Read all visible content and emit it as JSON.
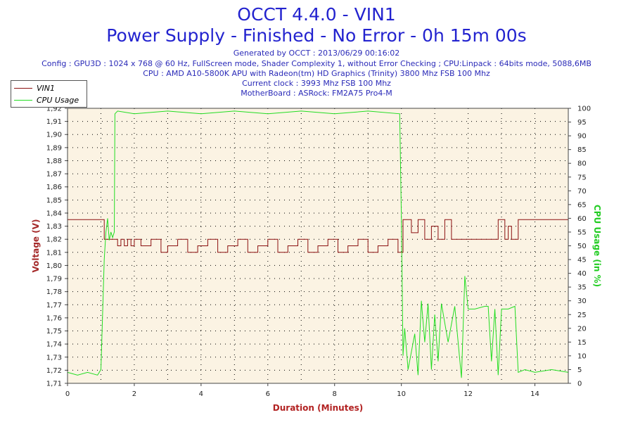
{
  "header": {
    "title": "OCCT 4.4.0 - VIN1",
    "subtitle": "Power Supply - Finished - No Error - 0h 15m 00s",
    "generated": "Generated by OCCT : 2013/06/29 00:16:02",
    "config": "Config : GPU3D : 1024 x 768 @ 60 Hz, FullScreen mode, Shader Complexity 1, without Error Checking ; CPU:Linpack : 64bits mode, 5088,6MB",
    "cpu": "CPU : AMD A10-5800K APU with Radeon(tm) HD Graphics (Trinity) 3800 Mhz FSB 100 Mhz",
    "clock": "Current clock : 3993 Mhz FSB 100 Mhz",
    "motherboard": "MotherBoard : ASRock: FM2A75 Pro4-M"
  },
  "colors": {
    "vin1": "#8b1010",
    "cpu": "#22dd22",
    "plot_bg": "#fbf3e3",
    "left_axis_label": "#a52a2a",
    "right_axis_label": "#22cc22",
    "bottom_axis_label": "#b22222"
  },
  "chart_data": {
    "type": "line",
    "title": "OCCT 4.4.0 - VIN1",
    "xlabel": "Duration (Minutes)",
    "ylabel": "Voltage (V)",
    "y2label": "CPU Usage (in %)",
    "xlim": [
      0,
      15
    ],
    "ylim": [
      1.71,
      1.92
    ],
    "y2lim": [
      0,
      100
    ],
    "x_ticks": [
      0,
      2,
      4,
      6,
      8,
      10,
      12,
      14
    ],
    "y_ticks": [
      "1,71",
      "1,72",
      "1,73",
      "1,74",
      "1,75",
      "1,76",
      "1,77",
      "1,78",
      "1,79",
      "1,80",
      "1,81",
      "1,82",
      "1,83",
      "1,84",
      "1,85",
      "1,86",
      "1,87",
      "1,88",
      "1,89",
      "1,90",
      "1,91",
      "1,92"
    ],
    "y2_ticks": [
      0,
      5,
      10,
      15,
      20,
      25,
      30,
      35,
      40,
      45,
      50,
      55,
      60,
      65,
      70,
      75,
      80,
      85,
      90,
      95,
      100
    ],
    "grid": true,
    "legend": "top-left",
    "series": [
      {
        "name": "VIN1",
        "axis": "left",
        "x": [
          0,
          1.1,
          1.1,
          1.4,
          1.5,
          1.6,
          1.7,
          1.8,
          1.9,
          2.0,
          2.2,
          2.5,
          2.8,
          3.0,
          3.3,
          3.6,
          3.9,
          4.2,
          4.5,
          4.8,
          5.1,
          5.4,
          5.7,
          6.0,
          6.3,
          6.6,
          6.9,
          7.2,
          7.5,
          7.8,
          8.1,
          8.4,
          8.7,
          9.0,
          9.3,
          9.6,
          9.9,
          10.0,
          10.05,
          10.3,
          10.5,
          10.7,
          10.9,
          11.1,
          11.3,
          11.5,
          12.0,
          12.5,
          12.9,
          13.1,
          13.2,
          13.3,
          13.5,
          15.0
        ],
        "y": [
          1.835,
          1.835,
          1.82,
          1.82,
          1.815,
          1.82,
          1.815,
          1.82,
          1.815,
          1.82,
          1.815,
          1.82,
          1.81,
          1.815,
          1.82,
          1.81,
          1.815,
          1.82,
          1.81,
          1.815,
          1.82,
          1.81,
          1.815,
          1.82,
          1.81,
          1.815,
          1.82,
          1.81,
          1.815,
          1.82,
          1.81,
          1.815,
          1.82,
          1.81,
          1.815,
          1.82,
          1.81,
          1.81,
          1.835,
          1.825,
          1.835,
          1.82,
          1.83,
          1.82,
          1.835,
          1.82,
          1.82,
          1.82,
          1.835,
          1.82,
          1.83,
          1.82,
          1.835,
          1.835
        ]
      },
      {
        "name": "CPU Usage",
        "axis": "right",
        "x": [
          0,
          0.3,
          0.6,
          0.9,
          1.0,
          1.1,
          1.15,
          1.2,
          1.25,
          1.3,
          1.35,
          1.4,
          1.42,
          1.5,
          2.0,
          3.0,
          4.0,
          5.0,
          6.0,
          7.0,
          8.0,
          9.0,
          9.95,
          10.0,
          10.05,
          10.1,
          10.2,
          10.4,
          10.5,
          10.6,
          10.7,
          10.8,
          10.9,
          11.0,
          11.1,
          11.2,
          11.4,
          11.6,
          11.8,
          11.9,
          12.0,
          12.2,
          12.5,
          12.6,
          12.7,
          12.8,
          12.9,
          13.0,
          13.2,
          13.4,
          13.5,
          13.7,
          14.0,
          14.5,
          15.0
        ],
        "y": [
          4,
          3,
          4,
          3,
          5,
          45,
          55,
          60,
          52,
          55,
          53,
          55,
          98,
          99,
          98,
          99,
          98,
          99,
          98,
          99,
          98,
          99,
          98,
          60,
          10,
          20,
          5,
          18,
          3,
          30,
          15,
          29,
          5,
          25,
          8,
          29,
          15,
          28,
          2,
          39,
          27,
          27,
          28,
          28,
          8,
          27,
          3,
          27,
          27,
          28,
          4,
          5,
          4,
          5,
          4
        ]
      }
    ]
  },
  "legend": {
    "vin1_label": "VIN1",
    "cpu_label": "CPU Usage"
  }
}
